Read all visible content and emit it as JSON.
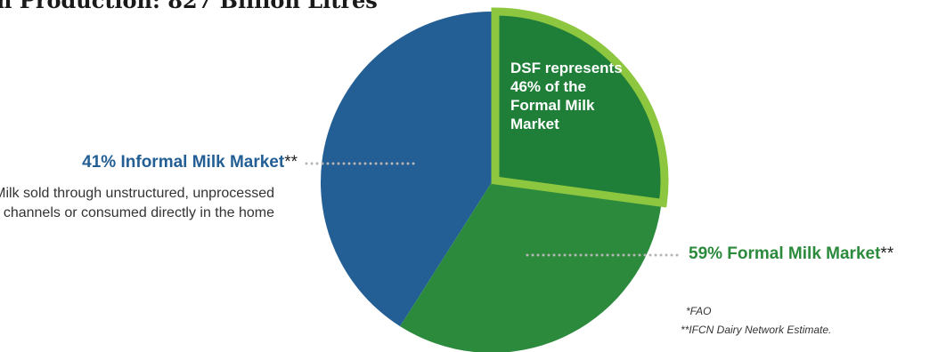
{
  "header": {
    "title": "n Production: 827 Billion Litres"
  },
  "chart_data": {
    "type": "pie",
    "slices": [
      {
        "label": "Informal Milk Market",
        "value": 41,
        "color": "#235f95",
        "label_text": "41% Informal Milk Market",
        "mark": "**"
      },
      {
        "label": "Formal Milk Market",
        "value": 59,
        "color": "#2c8a3d",
        "label_text": "59% Formal Milk Market",
        "mark": "**"
      }
    ],
    "highlight": {
      "share_of_formal": 46,
      "fill": "#1f7f38",
      "border": "#8dc63f"
    },
    "description": "Milk sold through unstructured, unprocessed channels or consumed directly in the home",
    "callout": "DSF represents 46% of the Formal Milk Market"
  },
  "footnotes": {
    "fao": "*FAO",
    "ifcn": "**IFCN Dairy Network Estimate."
  }
}
